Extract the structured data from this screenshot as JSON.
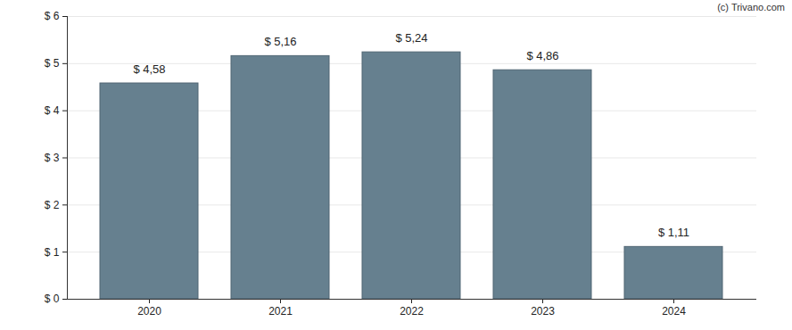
{
  "chart_data": {
    "type": "bar",
    "annotations": [
      "(c) Trivano.com"
    ],
    "categories": [
      "2020",
      "2021",
      "2022",
      "2023",
      "2024"
    ],
    "values": [
      4.58,
      5.16,
      5.24,
      4.86,
      1.11
    ],
    "value_labels": [
      "$ 4,58",
      "$ 5,16",
      "$ 5,24",
      "$ 4,86",
      "$ 1,11"
    ],
    "data_labels": true,
    "color": "#66808f",
    "ylim": [
      0,
      6
    ],
    "yticks": [
      {
        "value": 0,
        "label": "$ 0"
      },
      {
        "value": 1,
        "label": "$ 1"
      },
      {
        "value": 2,
        "label": "$ 2"
      },
      {
        "value": 3,
        "label": "$ 3"
      },
      {
        "value": 4,
        "label": "$ 4"
      },
      {
        "value": 5,
        "label": "$ 5"
      },
      {
        "value": 6,
        "label": "$ 6"
      }
    ],
    "grid": true
  }
}
